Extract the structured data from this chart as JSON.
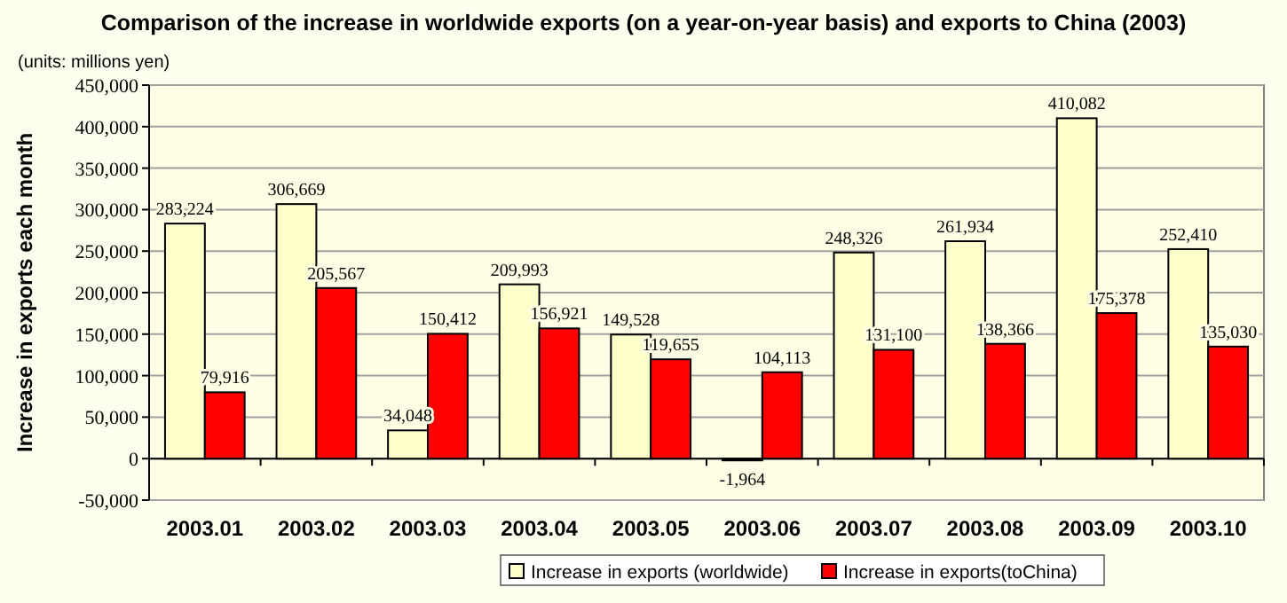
{
  "chart_data": {
    "type": "bar",
    "title": "Comparison of the increase in worldwide exports (on a year-on-year basis) and exports to China (2003)",
    "ylabel": "Increase in exports each month",
    "annotations": [
      "(units: millions yen)"
    ],
    "categories": [
      "2003.01",
      "2003.02",
      "2003.03",
      "2003.04",
      "2003.05",
      "2003.06",
      "2003.07",
      "2003.08",
      "2003.09",
      "2003.10"
    ],
    "series": [
      {
        "name": "Increase in exports (worldwide)",
        "color": "#ffffcc",
        "values": [
          283224,
          306669,
          34048,
          209993,
          149528,
          -1964,
          248326,
          261934,
          410082,
          252410
        ],
        "value_labels": [
          "283,224",
          "306,669",
          "34,048",
          "209,993",
          "149,528",
          "-1,964",
          "248,326",
          "261,934",
          "410,082",
          "252,410"
        ]
      },
      {
        "name": "Increase in exports(toChina)",
        "color": "#ff0000",
        "values": [
          79916,
          205567,
          150412,
          156921,
          119655,
          104113,
          131100,
          138366,
          175378,
          135030
        ],
        "value_labels": [
          "79,916",
          "205,567",
          "150,412",
          "156,921",
          "119,655",
          "104,113",
          "131,100",
          "138,366",
          "175,378",
          "135,030"
        ]
      }
    ],
    "ylim": [
      -50000,
      450000
    ],
    "yticks": [
      {
        "value": -50000,
        "label": "-50,000"
      },
      {
        "value": 0,
        "label": "0"
      },
      {
        "value": 50000,
        "label": "50,000"
      },
      {
        "value": 100000,
        "label": "100,000"
      },
      {
        "value": 150000,
        "label": "150,000"
      },
      {
        "value": 200000,
        "label": "200,000"
      },
      {
        "value": 250000,
        "label": "250,000"
      },
      {
        "value": 300000,
        "label": "300,000"
      },
      {
        "value": 350000,
        "label": "350,000"
      },
      {
        "value": 400000,
        "label": "400,000"
      },
      {
        "value": 450000,
        "label": "450,000"
      }
    ],
    "grid": "y",
    "legend": "bottom"
  }
}
